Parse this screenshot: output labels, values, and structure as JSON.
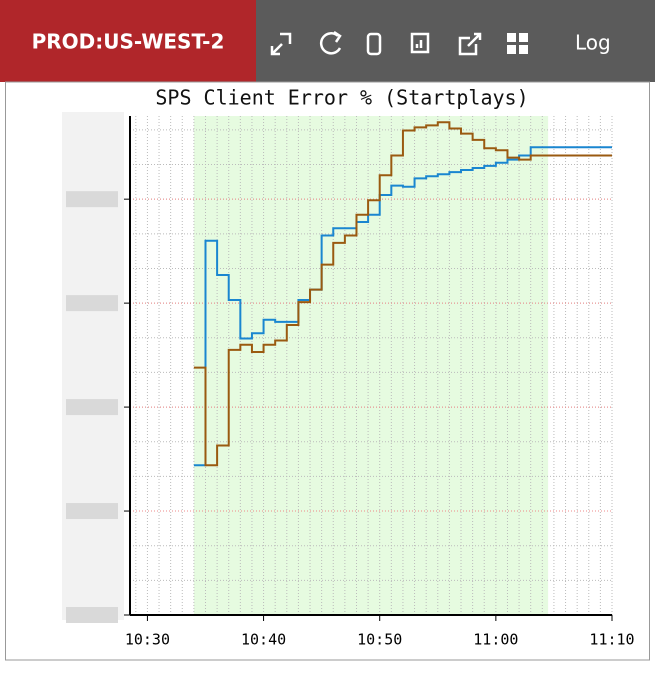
{
  "header": {
    "env": "PROD:US-WEST-2",
    "log": "Log"
  },
  "chart_data": {
    "type": "step",
    "title": "SPS Client Error % (Startplays)",
    "x": [
      634,
      635,
      636,
      637,
      638,
      639,
      640,
      641,
      642,
      643,
      644,
      645,
      646,
      647,
      648,
      649,
      650,
      651,
      652,
      653,
      654,
      655,
      656,
      657,
      658,
      659,
      660,
      661,
      662,
      663,
      664,
      665
    ],
    "series": [
      {
        "color": "#1a86d0",
        "values": [
          1.44,
          3.6,
          3.27,
          3.03,
          2.66,
          2.71,
          2.84,
          2.82,
          2.82,
          3.03,
          3.13,
          3.65,
          3.72,
          3.72,
          3.78,
          3.85,
          4.04,
          4.13,
          4.12,
          4.2,
          4.22,
          4.24,
          4.26,
          4.28,
          4.3,
          4.32,
          4.35,
          4.38,
          4.42,
          4.5,
          4.5,
          4.5
        ]
      },
      {
        "color": "#9a5a10",
        "values": [
          2.38,
          1.44,
          1.63,
          2.55,
          2.6,
          2.53,
          2.6,
          2.64,
          2.79,
          3.01,
          3.13,
          3.37,
          3.58,
          3.65,
          3.85,
          3.99,
          4.23,
          4.42,
          4.66,
          4.69,
          4.71,
          4.74,
          4.68,
          4.63,
          4.57,
          4.49,
          4.47,
          4.4,
          4.38,
          4.42,
          4.42,
          4.42
        ]
      }
    ],
    "xlim": [
      628.5,
      670
    ],
    "xticks": [
      {
        "value": 630,
        "label": "10:30"
      },
      {
        "value": 640,
        "label": "10:40"
      },
      {
        "value": 650,
        "label": "10:50"
      },
      {
        "value": 660,
        "label": "11:00"
      },
      {
        "value": 670,
        "label": "11:10"
      }
    ],
    "ylim": [
      0,
      4.8
    ],
    "yticks": [
      0,
      1,
      2,
      3,
      4
    ],
    "highlight": [
      634,
      664.5
    ],
    "highlight_color": "#e6fbe0",
    "grid": true
  }
}
